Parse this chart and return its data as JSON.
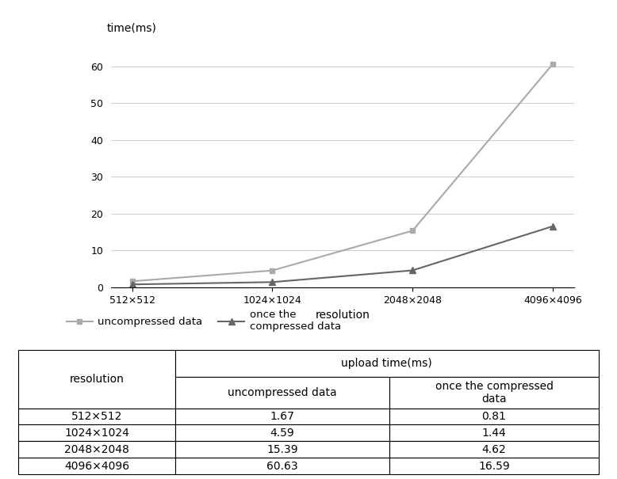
{
  "x_labels": [
    "512×512",
    "1024×1024",
    "2048×2048",
    "4096×4096"
  ],
  "x_positions": [
    0,
    1,
    2,
    3
  ],
  "uncompressed": [
    1.67,
    4.59,
    15.39,
    60.63
  ],
  "compressed_once": [
    0.81,
    1.44,
    4.62,
    16.59
  ],
  "ylabel": "time(ms)",
  "xlabel": "resolution",
  "ylim": [
    0,
    65
  ],
  "yticks": [
    0,
    10,
    20,
    30,
    40,
    50,
    60
  ],
  "legend_uncompressed": "uncompressed data",
  "legend_compressed": "once the\ncompressed data",
  "uncompressed_color": "#aaaaaa",
  "compressed_color": "#666666",
  "line_width": 1.5,
  "marker_uncompressed": "s",
  "marker_compressed": "^",
  "table_rows": [
    [
      "512×512",
      "1.67",
      "0.81"
    ],
    [
      "1024×1024",
      "4.59",
      "1.44"
    ],
    [
      "2048×2048",
      "15.39",
      "4.62"
    ],
    [
      "4096×4096",
      "60.63",
      "16.59"
    ]
  ],
  "background_color": "#ffffff",
  "grid_color": "#cccccc",
  "font_size": 10,
  "table_font_size": 10
}
